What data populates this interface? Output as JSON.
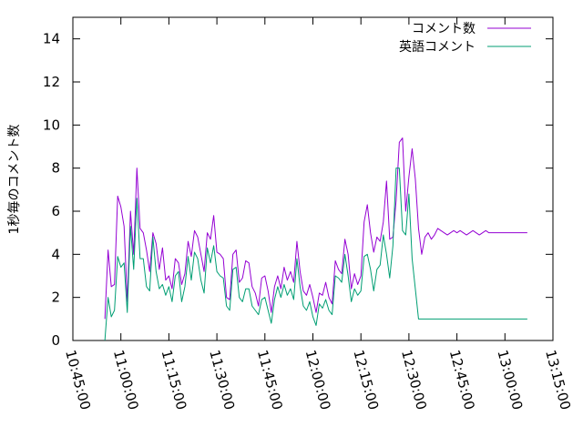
{
  "chart_data": {
    "type": "line",
    "ylabel": "1秒毎のコメント数",
    "xlabel": "",
    "ylim": [
      0,
      15
    ],
    "yticks": [
      0,
      2,
      4,
      6,
      8,
      10,
      12,
      14
    ],
    "xlim": [
      "10:45:00",
      "13:15:00"
    ],
    "xticks": [
      "10:45:00",
      "11:00:00",
      "11:15:00",
      "11:30:00",
      "11:45:00",
      "12:00:00",
      "12:15:00",
      "12:30:00",
      "12:45:00",
      "13:00:00",
      "13:15:00"
    ],
    "grid": false,
    "legend_position": "top-right",
    "x": [
      "10:55:00",
      "10:56:00",
      "10:57:00",
      "10:58:00",
      "10:59:00",
      "11:00:00",
      "11:01:00",
      "11:02:00",
      "11:03:00",
      "11:04:00",
      "11:05:00",
      "11:06:00",
      "11:07:00",
      "11:08:00",
      "11:09:00",
      "11:10:00",
      "11:11:00",
      "11:12:00",
      "11:13:00",
      "11:14:00",
      "11:15:00",
      "11:16:00",
      "11:17:00",
      "11:18:00",
      "11:19:00",
      "11:20:00",
      "11:21:00",
      "11:22:00",
      "11:23:00",
      "11:24:00",
      "11:25:00",
      "11:26:00",
      "11:27:00",
      "11:28:00",
      "11:29:00",
      "11:30:00",
      "11:31:00",
      "11:32:00",
      "11:33:00",
      "11:34:00",
      "11:35:00",
      "11:36:00",
      "11:37:00",
      "11:38:00",
      "11:39:00",
      "11:40:00",
      "11:41:00",
      "11:42:00",
      "11:43:00",
      "11:44:00",
      "11:45:00",
      "11:46:00",
      "11:47:00",
      "11:48:00",
      "11:49:00",
      "11:50:00",
      "11:51:00",
      "11:52:00",
      "11:53:00",
      "11:54:00",
      "11:55:00",
      "11:56:00",
      "11:57:00",
      "11:58:00",
      "11:59:00",
      "12:00:00",
      "12:01:00",
      "12:02:00",
      "12:03:00",
      "12:04:00",
      "12:05:00",
      "12:06:00",
      "12:07:00",
      "12:08:00",
      "12:09:00",
      "12:10:00",
      "12:11:00",
      "12:12:00",
      "12:13:00",
      "12:14:00",
      "12:15:00",
      "12:16:00",
      "12:17:00",
      "12:18:00",
      "12:19:00",
      "12:20:00",
      "12:21:00",
      "12:22:00",
      "12:23:00",
      "12:24:00",
      "12:25:00",
      "12:26:00",
      "12:27:00",
      "12:28:00",
      "12:29:00",
      "12:30:00",
      "12:31:00",
      "12:32:00",
      "12:33:00",
      "12:34:00",
      "12:35:00",
      "12:36:00",
      "12:37:00",
      "12:38:00",
      "12:39:00",
      "12:40:00",
      "12:41:00",
      "12:42:00",
      "12:43:00",
      "12:44:00",
      "12:45:00",
      "12:46:00",
      "12:47:00",
      "12:48:00",
      "12:49:00",
      "12:50:00",
      "12:51:00",
      "12:52:00",
      "12:53:00",
      "12:54:00",
      "12:55:00",
      "12:56:00",
      "12:57:00",
      "12:58:00",
      "12:59:00",
      "13:00:00",
      "13:01:00",
      "13:02:00",
      "13:03:00",
      "13:04:00",
      "13:05:00",
      "13:06:00",
      "13:07:00"
    ],
    "series": [
      {
        "name": "コメント数",
        "color": "#9400d3",
        "values": [
          1.0,
          4.2,
          2.5,
          2.6,
          6.7,
          6.2,
          5.3,
          1.8,
          6.0,
          4.0,
          8.0,
          5.2,
          5.0,
          4.2,
          3.2,
          5.0,
          4.5,
          3.3,
          4.3,
          2.8,
          3.0,
          2.4,
          3.8,
          3.6,
          2.6,
          3.1,
          4.6,
          3.9,
          5.1,
          4.8,
          4.0,
          3.2,
          5.0,
          4.7,
          5.8,
          4.1,
          4.0,
          3.8,
          2.0,
          1.9,
          4.0,
          4.2,
          2.7,
          2.9,
          3.7,
          3.6,
          2.5,
          2.2,
          1.6,
          2.9,
          3.0,
          2.3,
          1.3,
          2.5,
          3.0,
          2.4,
          3.4,
          2.8,
          3.2,
          2.7,
          4.6,
          3.2,
          2.3,
          2.1,
          2.6,
          2.0,
          1.3,
          2.2,
          2.1,
          2.7,
          2.0,
          1.7,
          3.7,
          3.3,
          3.1,
          4.7,
          4.0,
          2.4,
          3.1,
          2.6,
          3.0,
          5.5,
          6.3,
          5.0,
          4.1,
          4.8,
          4.6,
          5.5,
          7.4,
          4.7,
          4.8,
          6.5,
          9.2,
          9.4,
          6.0,
          7.6,
          8.9,
          7.5,
          5.2,
          4.0,
          4.8,
          5.0,
          4.7,
          4.9,
          5.2,
          5.1,
          5.0,
          4.9,
          5.0,
          5.1,
          5.0,
          5.1,
          5.0,
          4.9,
          5.0,
          5.1,
          5.0,
          4.9,
          5.0,
          5.1,
          5.0,
          5.0,
          5.0,
          5.0,
          5.0,
          5.0,
          5.0,
          5.0,
          5.0,
          5.0,
          5.0,
          5.0,
          5.0
        ]
      },
      {
        "name": "英語コメント",
        "color": "#009e73",
        "values": [
          0.0,
          2.0,
          1.1,
          1.4,
          3.9,
          3.4,
          3.6,
          1.3,
          5.3,
          3.3,
          6.6,
          3.8,
          3.8,
          2.5,
          2.3,
          4.8,
          3.2,
          2.4,
          2.6,
          2.1,
          2.5,
          1.8,
          3.0,
          3.2,
          1.8,
          2.5,
          3.9,
          2.8,
          4.1,
          3.8,
          2.8,
          2.2,
          4.3,
          3.6,
          4.4,
          3.2,
          3.0,
          2.9,
          1.6,
          1.4,
          3.3,
          3.4,
          2.0,
          1.8,
          2.4,
          2.4,
          1.6,
          1.4,
          1.2,
          1.9,
          2.0,
          1.4,
          0.8,
          1.9,
          2.5,
          2.0,
          2.6,
          2.1,
          2.4,
          1.9,
          3.8,
          2.5,
          1.6,
          1.4,
          1.8,
          1.1,
          0.7,
          1.7,
          1.5,
          1.9,
          1.4,
          1.2,
          3.0,
          2.9,
          2.7,
          4.0,
          3.0,
          1.8,
          2.4,
          2.1,
          2.3,
          3.9,
          4.0,
          3.3,
          2.3,
          3.3,
          3.5,
          4.9,
          4.0,
          2.9,
          4.4,
          8.0,
          8.0,
          5.1,
          4.9,
          6.8,
          3.8,
          2.4,
          1.0,
          1.0,
          1.0,
          1.0,
          1.0,
          1.0,
          1.0,
          1.0,
          1.0,
          1.0,
          1.0,
          1.0,
          1.0,
          1.0,
          1.0,
          1.0,
          1.0,
          1.0,
          1.0,
          1.0,
          1.0,
          1.0,
          1.0,
          1.0,
          1.0,
          1.0,
          1.0,
          1.0,
          1.0,
          1.0,
          1.0,
          1.0,
          1.0,
          1.0,
          1.0
        ]
      }
    ]
  }
}
